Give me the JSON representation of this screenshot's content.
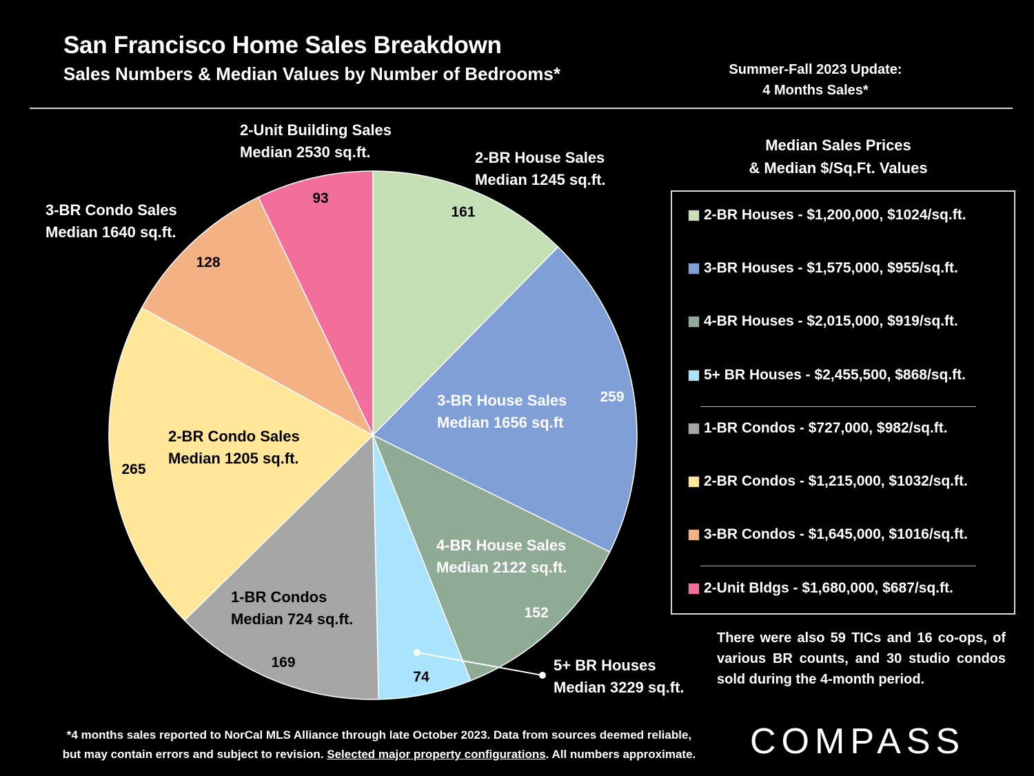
{
  "header": {
    "title": "San Francisco Home Sales Breakdown",
    "subtitle": "Sales Numbers & Median Values by Number of Bedrooms*",
    "update_line1": "Summer-Fall 2023 Update:",
    "update_line2": "4 Months Sales*"
  },
  "chart_data": {
    "type": "pie",
    "title": "San Francisco Home Sales Breakdown",
    "categories": [
      "2-BR House Sales",
      "3-BR House Sales",
      "4-BR House Sales",
      "5+ BR Houses",
      "1-BR Condos",
      "2-BR Condo Sales",
      "3-BR Condo Sales",
      "2-Unit Building Sales"
    ],
    "values": [
      161,
      259,
      152,
      74,
      169,
      265,
      128,
      93
    ],
    "colors": [
      "#c5e0b4",
      "#7f9fd6",
      "#8faa95",
      "#a9e4fc",
      "#a6a6a6",
      "#ffe699",
      "#f4b183",
      "#f36f9b"
    ],
    "slice_labels": [
      {
        "line1": "2-BR House Sales",
        "line2": "Median 1245 sq.ft."
      },
      {
        "line1": "3-BR House Sales",
        "line2": "Median 1656 sq.ft"
      },
      {
        "line1": "4-BR House Sales",
        "line2": "Median 2122 sq.ft."
      },
      {
        "line1": "5+ BR Houses",
        "line2": "Median 3229 sq.ft."
      },
      {
        "line1": "1-BR Condos",
        "line2": "Median 724 sq.ft."
      },
      {
        "line1": "2-BR Condo Sales",
        "line2": "Median 1205 sq.ft."
      },
      {
        "line1": "3-BR Condo Sales",
        "line2": "Median 1640 sq.ft."
      },
      {
        "line1": "2-Unit Building Sales",
        "line2": "Median 2530 sq.ft."
      }
    ]
  },
  "legend": {
    "title_line1": "Median Sales Prices",
    "title_line2": "& Median $/Sq.Ft. Values",
    "items": [
      {
        "label": "2-BR Houses - $1,200,000, $1024/sq.ft.",
        "color": "#c5e0b4"
      },
      {
        "label": "3-BR Houses - $1,575,000, $955/sq.ft.",
        "color": "#7f9fd6"
      },
      {
        "label": "4-BR Houses - $2,015,000, $919/sq.ft.",
        "color": "#8faa95"
      },
      {
        "label": "5+ BR Houses - $2,455,500, $868/sq.ft.",
        "color": "#a9e4fc"
      },
      {
        "label": "1-BR Condos - $727,000, $982/sq.ft.",
        "color": "#a6a6a6"
      },
      {
        "label": "2-BR Condos - $1,215,000, $1032/sq.ft.",
        "color": "#ffe699"
      },
      {
        "label": "3-BR Condos - $1,645,000, $1016/sq.ft.",
        "color": "#f4b183"
      },
      {
        "label": "2-Unit Bldgs - $1,680,000, $687/sq.ft.",
        "color": "#f36f9b"
      }
    ]
  },
  "note": "There were also 59 TICs and 16 co-ops, of various BR counts, and 30 studio condos sold during the 4-month period.",
  "footnote": {
    "line1": "*4 months sales reported to NorCal MLS Alliance through late October 2023. Data from sources deemed reliable,",
    "line2_pre": "but may contain errors and subject to revision. ",
    "line2_link": "Selected major property configurations",
    "line2_post": ". All numbers approximate."
  },
  "brand": "COMPASS"
}
